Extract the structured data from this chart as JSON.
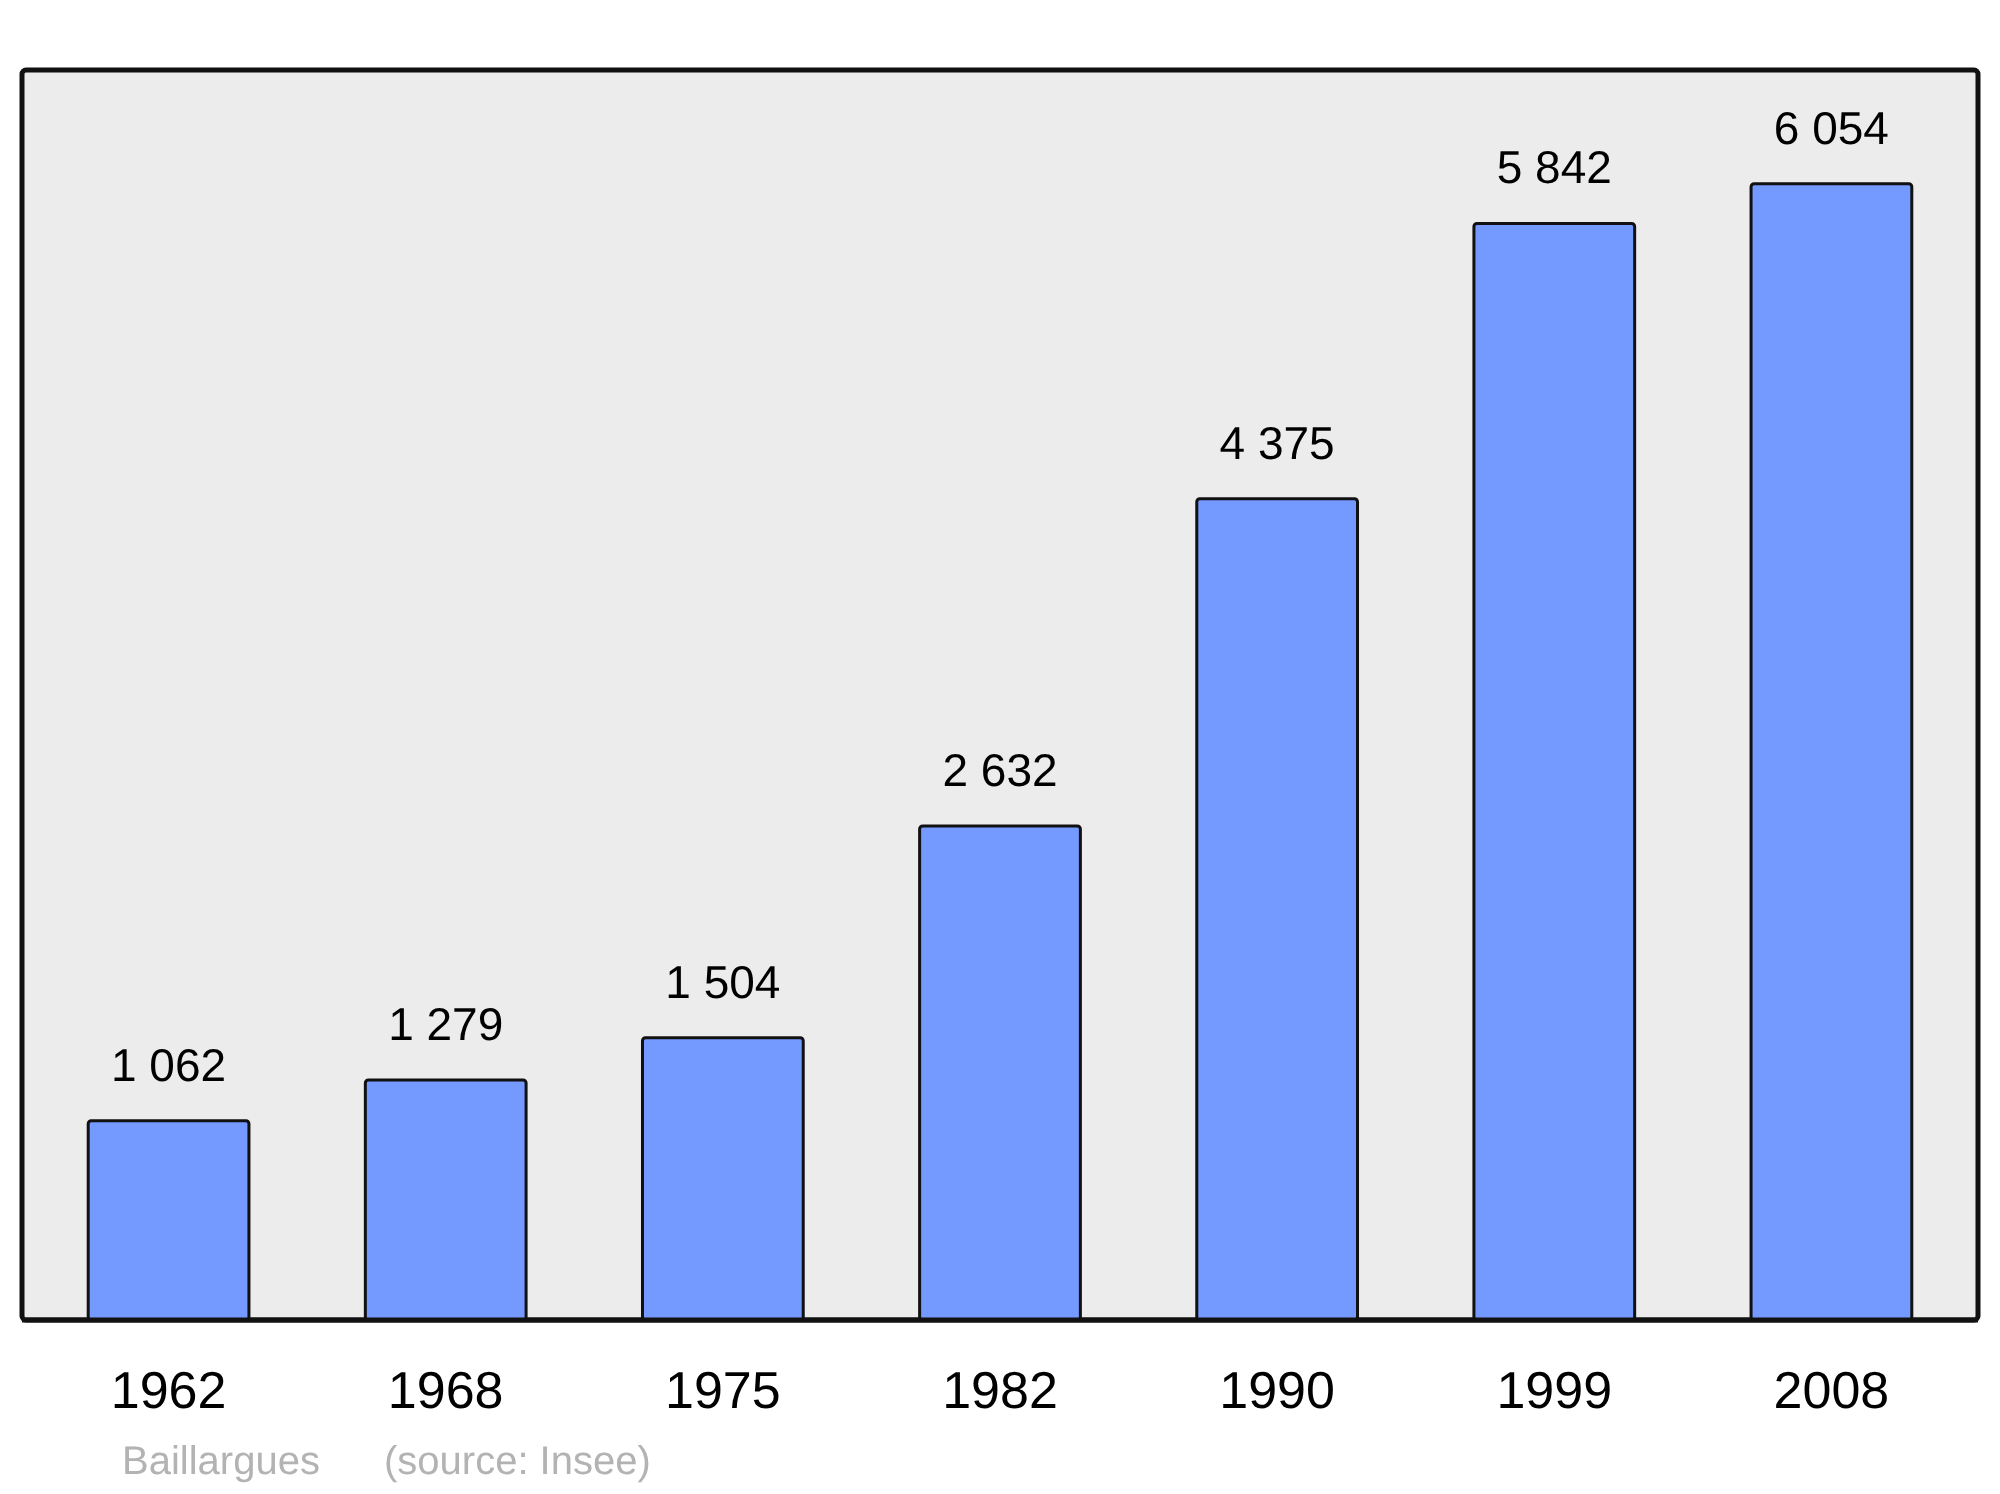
{
  "chart_data": {
    "type": "bar",
    "categories": [
      "1962",
      "1968",
      "1975",
      "1982",
      "1990",
      "1999",
      "2008"
    ],
    "values": [
      1062,
      1279,
      1504,
      2632,
      4375,
      5842,
      6054
    ],
    "value_labels": [
      "1 062",
      "1 279",
      "1 504",
      "2 632",
      "4 375",
      "5 842",
      "6 054"
    ],
    "color": "#7499ff",
    "annotations": [
      "Baillargues",
      "(source: Insee)"
    ]
  }
}
